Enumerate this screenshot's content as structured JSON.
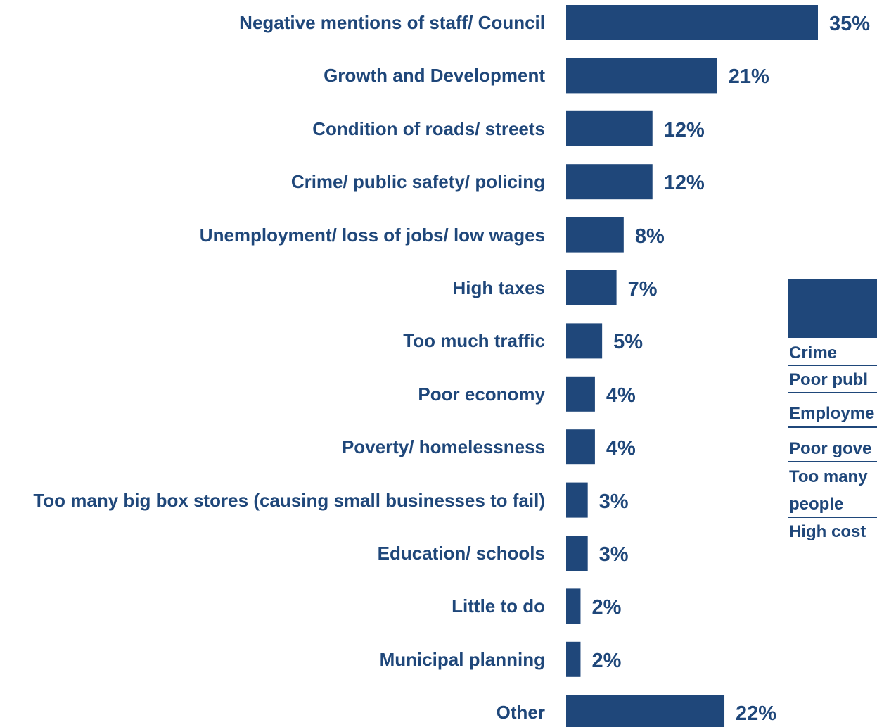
{
  "chart_data": {
    "type": "bar",
    "orientation": "horizontal",
    "categories": [
      "Negative mentions of staff/ Council",
      "Growth and Development",
      "Condition of roads/ streets",
      "Crime/ public safety/ policing",
      "Unemployment/ loss of jobs/ low wages",
      "High taxes",
      "Too much traffic",
      "Poor economy",
      "Poverty/ homelessness",
      "Too many big box stores (causing small businesses to fail)",
      "Education/ schools",
      "Little to do",
      "Municipal planning",
      "Other"
    ],
    "values": [
      35,
      21,
      12,
      12,
      8,
      7,
      5,
      4,
      4,
      3,
      3,
      2,
      2,
      22
    ],
    "value_labels": [
      "35%",
      "21%",
      "12%",
      "12%",
      "8%",
      "7%",
      "5%",
      "4%",
      "4%",
      "3%",
      "3%",
      "2%",
      "2%",
      "22%"
    ],
    "xlim": [
      0,
      35
    ],
    "grid": false,
    "bar_color": "#1f477a"
  },
  "side_table": {
    "rows": [
      "Crime",
      "Poor publ",
      "Employme",
      "Poor gove",
      "Too many",
      "people",
      "High cost"
    ]
  }
}
